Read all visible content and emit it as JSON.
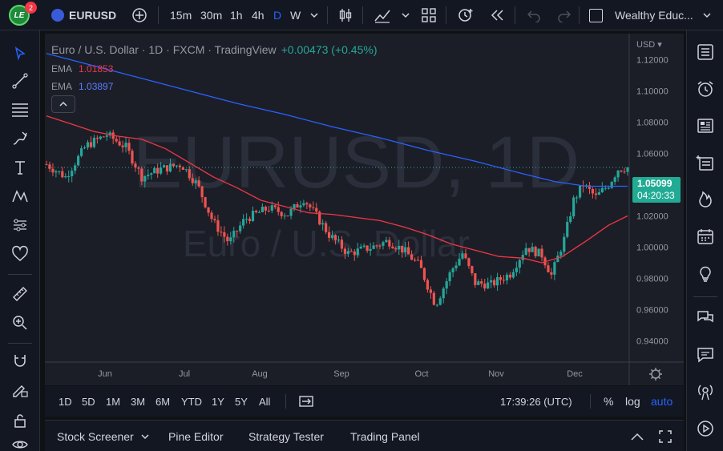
{
  "toolbar": {
    "avatar_initials": "LE",
    "notification_count": "2",
    "symbol": "EURUSD",
    "intervals": [
      "15m",
      "30m",
      "1h",
      "4h",
      "D",
      "W"
    ],
    "active_interval": "D",
    "layout_name": "Wealthy Educ..."
  },
  "legend": {
    "title": "Euro / U.S. Dollar · 1D · FXCM · TradingView",
    "change": "+0.00473 (+0.45%)",
    "ema1_label": "EMA",
    "ema1_value": "1.01853",
    "ema1_color": "#f23645",
    "ema2_label": "EMA",
    "ema2_value": "1.03897",
    "ema2_color": "#2962ff"
  },
  "watermark": {
    "symbol_text": "EURUSD, 1D",
    "name_text": "Euro / U.S. Dollar"
  },
  "chart_data": {
    "type": "candlestick",
    "currency": "USD",
    "currency_suffix": "▾",
    "price_ticks": [
      "1.12000",
      "1.10000",
      "1.08000",
      "1.06000",
      "1.04000",
      "1.02000",
      "1.00000",
      "0.98000",
      "0.96000",
      "0.94000"
    ],
    "ylim": [
      0.93,
      1.13
    ],
    "x_labels": [
      "Jun",
      "Jul",
      "Aug",
      "Sep",
      "Oct",
      "Nov",
      "Dec"
    ],
    "last_price": "1.05099",
    "countdown": "04:20:33",
    "up_color": "#26a69a",
    "down_color": "#ef5350",
    "ema_fast": [
      [
        0,
        1.084
      ],
      [
        15,
        1.079
      ],
      [
        30,
        1.074
      ],
      [
        45,
        1.071
      ],
      [
        60,
        1.069
      ],
      [
        75,
        1.063
      ],
      [
        90,
        1.054
      ],
      [
        105,
        1.045
      ],
      [
        120,
        1.038
      ],
      [
        135,
        1.03
      ],
      [
        150,
        1.026
      ],
      [
        165,
        1.022
      ],
      [
        180,
        1.021
      ],
      [
        195,
        1.019
      ],
      [
        210,
        1.017
      ],
      [
        225,
        1.013
      ],
      [
        240,
        1.008
      ],
      [
        255,
        1.002
      ],
      [
        270,
        0.998
      ],
      [
        285,
        0.994
      ],
      [
        300,
        0.993
      ],
      [
        312,
        0.99
      ],
      [
        325,
        0.994
      ],
      [
        340,
        1.004
      ],
      [
        354,
        1.014
      ],
      [
        366,
        1.02
      ]
    ],
    "ema_slow": [
      [
        0,
        1.124
      ],
      [
        30,
        1.116
      ],
      [
        60,
        1.108
      ],
      [
        90,
        1.1
      ],
      [
        120,
        1.092
      ],
      [
        150,
        1.085
      ],
      [
        180,
        1.077
      ],
      [
        210,
        1.07
      ],
      [
        240,
        1.062
      ],
      [
        270,
        1.055
      ],
      [
        300,
        1.047
      ],
      [
        320,
        1.042
      ],
      [
        340,
        1.039
      ],
      [
        366,
        1.039
      ]
    ]
  },
  "bottom": {
    "ranges": [
      "1D",
      "5D",
      "1M",
      "3M",
      "6M",
      "YTD",
      "1Y",
      "5Y",
      "All"
    ],
    "clock": "17:39:26 (UTC)",
    "percent": "%",
    "log": "log",
    "auto": "auto"
  },
  "panels": [
    "Stock Screener",
    "Pine Editor",
    "Strategy Tester",
    "Trading Panel"
  ]
}
